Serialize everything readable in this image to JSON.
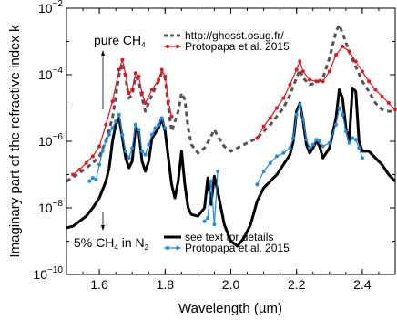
{
  "chart_data": {
    "type": "line",
    "xlabel": "Wavelength (µm)",
    "ylabel": "Imaginary part of the refractive index k",
    "xlim": [
      1.5,
      2.5
    ],
    "ylim_exponent": [
      -10,
      -2
    ],
    "y_scale": "log",
    "x_ticks": [
      "1.6",
      "1.8",
      "2.0",
      "2.2",
      "2.4"
    ],
    "y_ticks": [
      {
        "base": "10",
        "exp": "−2"
      },
      {
        "base": "10",
        "exp": "−4"
      },
      {
        "base": "10",
        "exp": "−6"
      },
      {
        "base": "10",
        "exp": "−8"
      },
      {
        "base": "10",
        "exp": "−10"
      }
    ],
    "annotations": {
      "pure": "pure CH",
      "pure_sub": "4",
      "mix_pre": "5% CH",
      "mix_sub1": "4",
      "mix_mid": " in N",
      "mix_sub2": "2"
    },
    "legend_top": [
      {
        "label": "http://ghosst.osug.fr/",
        "color": "#555555",
        "style": "dashed"
      },
      {
        "label": "Protopapa et al. 2015",
        "color": "#e8141a",
        "style": "line-dots"
      }
    ],
    "legend_bottom": [
      {
        "label": "see text for details",
        "color": "#000000",
        "style": "solid"
      },
      {
        "label": "Protopapa et al. 2015",
        "color": "#1e8ce6",
        "style": "line-dots"
      }
    ],
    "series": [
      {
        "key": "pure_ghosst",
        "color": "#555555",
        "style": "dashed",
        "x": [
          1.5,
          1.54,
          1.58,
          1.6,
          1.62,
          1.64,
          1.66,
          1.67,
          1.68,
          1.69,
          1.7,
          1.71,
          1.72,
          1.73,
          1.74,
          1.76,
          1.78,
          1.79,
          1.8,
          1.81,
          1.82,
          1.84,
          1.85,
          1.86,
          1.87,
          1.88,
          1.9,
          1.92,
          1.94,
          1.95,
          1.96,
          1.98,
          2.0,
          2.04,
          2.08,
          2.12,
          2.16,
          2.18,
          2.2,
          2.21,
          2.22,
          2.24,
          2.26,
          2.28,
          2.3,
          2.32,
          2.33,
          2.34,
          2.36,
          2.37,
          2.38,
          2.4,
          2.42,
          2.44,
          2.46,
          2.48,
          2.5
        ],
        "y": [
          -7.2,
          -6.95,
          -6.65,
          -6.45,
          -6.0,
          -5.3,
          -4.0,
          -3.65,
          -4.1,
          -4.7,
          -4.6,
          -4.05,
          -4.2,
          -4.7,
          -5.1,
          -4.6,
          -4.2,
          -3.95,
          -4.1,
          -5.0,
          -5.7,
          -5.1,
          -4.55,
          -4.75,
          -5.6,
          -6.1,
          -6.35,
          -6.2,
          -5.85,
          -5.65,
          -5.85,
          -6.15,
          -6.3,
          -6.1,
          -5.9,
          -5.5,
          -5.0,
          -4.6,
          -4.1,
          -3.85,
          -4.1,
          -4.3,
          -4.25,
          -4.1,
          -3.5,
          -2.7,
          -2.5,
          -2.75,
          -3.3,
          -3.55,
          -3.75,
          -4.2,
          -4.5,
          -4.85,
          -5.05,
          -5.1,
          -5.1
        ]
      },
      {
        "key": "pure_protopapa",
        "color": "#e8141a",
        "style": "line-dots",
        "segments": [
          {
            "x": [
              1.52,
              1.54,
              1.56,
              1.58,
              1.6,
              1.62,
              1.64,
              1.66,
              1.67,
              1.68,
              1.69,
              1.7,
              1.71,
              1.72,
              1.73,
              1.74,
              1.76,
              1.78,
              1.79,
              1.8,
              1.81,
              1.82
            ],
            "y": [
              -7.0,
              -6.85,
              -6.65,
              -6.45,
              -6.15,
              -5.5,
              -4.8,
              -3.85,
              -3.55,
              -4.0,
              -4.55,
              -4.45,
              -3.95,
              -4.05,
              -4.55,
              -4.85,
              -4.45,
              -4.15,
              -3.85,
              -4.05,
              -4.8,
              -5.25
            ]
          },
          {
            "x": [
              2.08,
              2.1,
              2.12,
              2.14,
              2.16,
              2.18,
              2.2,
              2.21,
              2.22,
              2.24,
              2.26,
              2.28,
              2.3,
              2.32,
              2.34,
              2.36,
              2.38,
              2.4,
              2.42,
              2.44,
              2.46,
              2.48,
              2.5
            ],
            "y": [
              -5.9,
              -5.55,
              -5.3,
              -5.0,
              -4.7,
              -4.3,
              -3.85,
              -3.6,
              -3.9,
              -4.15,
              -4.2,
              -4.2,
              -3.9,
              -3.4,
              -3.15,
              -3.3,
              -3.6,
              -3.9,
              -4.2,
              -4.45,
              -4.65,
              -4.85,
              -5.05
            ]
          }
        ]
      },
      {
        "key": "mix_model",
        "color": "#000000",
        "style": "solid",
        "x": [
          1.5,
          1.52,
          1.54,
          1.56,
          1.58,
          1.6,
          1.62,
          1.63,
          1.64,
          1.65,
          1.66,
          1.67,
          1.68,
          1.69,
          1.7,
          1.71,
          1.72,
          1.73,
          1.74,
          1.75,
          1.76,
          1.78,
          1.79,
          1.8,
          1.81,
          1.82,
          1.83,
          1.84,
          1.85,
          1.86,
          1.87,
          1.88,
          1.9,
          1.92,
          1.93,
          1.94,
          1.95,
          1.96,
          1.97,
          1.98,
          2.0,
          2.02,
          2.04,
          2.06,
          2.08,
          2.1,
          2.12,
          2.14,
          2.16,
          2.18,
          2.19,
          2.2,
          2.21,
          2.22,
          2.23,
          2.24,
          2.25,
          2.26,
          2.27,
          2.28,
          2.3,
          2.32,
          2.33,
          2.34,
          2.35,
          2.36,
          2.37,
          2.38,
          2.39,
          2.4,
          2.42,
          2.44,
          2.46,
          2.48,
          2.5
        ],
        "y": [
          -8.6,
          -8.55,
          -8.4,
          -8.25,
          -8.0,
          -7.7,
          -7.2,
          -6.8,
          -6.0,
          -5.5,
          -5.3,
          -5.9,
          -6.5,
          -6.8,
          -6.6,
          -5.6,
          -5.7,
          -6.6,
          -6.9,
          -6.6,
          -5.9,
          -5.6,
          -5.3,
          -5.7,
          -6.5,
          -7.3,
          -7.7,
          -7.2,
          -6.3,
          -7.3,
          -8.0,
          -8.2,
          -8.25,
          -8.0,
          -7.1,
          -7.9,
          -7.05,
          -7.5,
          -8.0,
          -8.5,
          -9.0,
          -9.15,
          -8.9,
          -8.5,
          -7.8,
          -7.4,
          -7.2,
          -7.0,
          -6.7,
          -6.4,
          -6.0,
          -5.1,
          -4.85,
          -5.4,
          -6.1,
          -6.35,
          -6.2,
          -6.0,
          -6.15,
          -6.5,
          -6.2,
          -5.3,
          -4.45,
          -4.7,
          -5.6,
          -6.0,
          -4.4,
          -4.5,
          -6.0,
          -6.3,
          -6.3,
          -6.5,
          -6.7,
          -7.0,
          -7.2
        ]
      },
      {
        "key": "mix_protopapa",
        "color": "#1e8ce6",
        "style": "line-dots",
        "segments": [
          {
            "x": [
              1.57,
              1.58,
              1.59,
              1.6,
              1.61,
              1.62,
              1.63,
              1.64,
              1.65,
              1.66,
              1.67,
              1.68,
              1.69,
              1.7,
              1.71,
              1.72,
              1.73,
              1.74,
              1.75,
              1.76,
              1.77,
              1.78,
              1.79,
              1.8
            ],
            "y": [
              -7.2,
              -7.1,
              -7.15,
              -6.7,
              -6.3,
              -6.0,
              -5.8,
              -5.6,
              -5.4,
              -5.2,
              -5.8,
              -6.3,
              -6.5,
              -6.2,
              -5.5,
              -5.65,
              -6.3,
              -6.4,
              -6.1,
              -5.8,
              -5.6,
              -5.5,
              -5.3,
              -5.6
            ]
          },
          {
            "x": [
              1.92,
              1.93,
              1.94,
              1.95,
              1.96
            ],
            "y": [
              -8.4,
              -8.3,
              -7.2,
              -8.5,
              -6.9
            ]
          },
          {
            "x": [
              2.08,
              2.1,
              2.12,
              2.14,
              2.16,
              2.18,
              2.19,
              2.2,
              2.21,
              2.22,
              2.23,
              2.24,
              2.25,
              2.26,
              2.27,
              2.28,
              2.3,
              2.32,
              2.33,
              2.34,
              2.35,
              2.36,
              2.37,
              2.38,
              2.39,
              2.4
            ],
            "y": [
              -7.3,
              -6.9,
              -6.65,
              -6.45,
              -6.35,
              -6.2,
              -5.9,
              -5.2,
              -4.9,
              -5.35,
              -5.95,
              -6.2,
              -6.1,
              -5.95,
              -6.0,
              -6.15,
              -6.05,
              -5.5,
              -5.0,
              -5.2,
              -5.7,
              -6.05,
              -5.9,
              -5.95,
              -6.2,
              -6.5
            ]
          }
        ]
      }
    ]
  }
}
